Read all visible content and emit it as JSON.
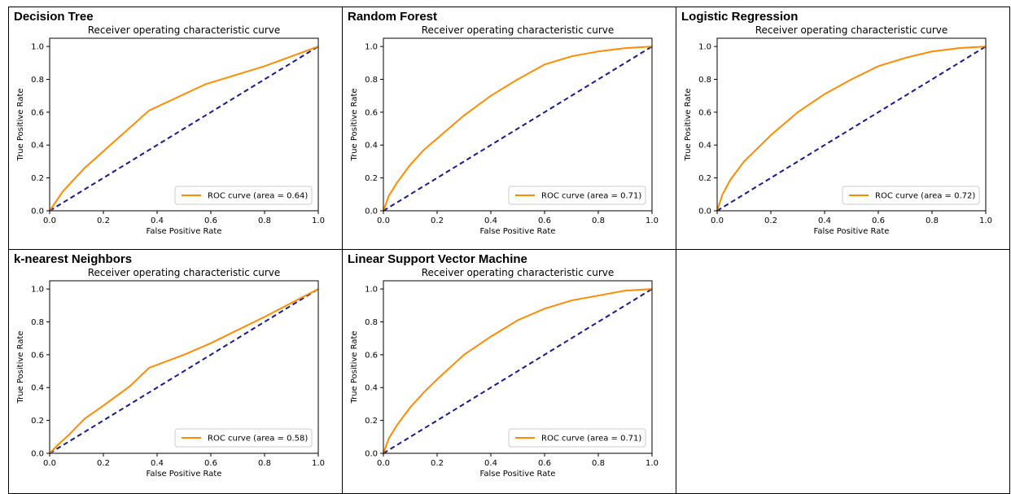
{
  "colors": {
    "roc": "#ff8c00",
    "diagonal": "#1a1a8c",
    "frame": "#000000"
  },
  "chart_data": [
    {
      "type": "line",
      "panel_title": "Decision Tree",
      "title": "Receiver operating characteristic curve",
      "xlabel": "False Positive Rate",
      "ylabel": "True Positive Rate",
      "xlim": [
        0,
        1
      ],
      "ylim": [
        0,
        1.05
      ],
      "xticks": [
        "0.0",
        "0.2",
        "0.4",
        "0.6",
        "0.8",
        "1.0"
      ],
      "yticks": [
        "0.0",
        "0.2",
        "0.4",
        "0.6",
        "0.8",
        "1.0"
      ],
      "legend_position": "lower-right",
      "series": [
        {
          "name": "ROC curve (area = 0.64)",
          "x": [
            0,
            0.05,
            0.13,
            0.37,
            0.58,
            0.8,
            1.0
          ],
          "y": [
            0,
            0.12,
            0.26,
            0.61,
            0.77,
            0.88,
            1.0
          ]
        }
      ],
      "diagonal": {
        "x": [
          0,
          1
        ],
        "y": [
          0,
          1
        ]
      }
    },
    {
      "type": "line",
      "panel_title": "Random Forest",
      "title": "Receiver operating characteristic curve",
      "xlabel": "False Positive Rate",
      "ylabel": "True Positive Rate",
      "xlim": [
        0,
        1
      ],
      "ylim": [
        0,
        1.05
      ],
      "xticks": [
        "0.0",
        "0.2",
        "0.4",
        "0.6",
        "0.8",
        "1.0"
      ],
      "yticks": [
        "0.0",
        "0.2",
        "0.4",
        "0.6",
        "0.8",
        "1.0"
      ],
      "legend_position": "lower-right",
      "series": [
        {
          "name": "ROC curve (area = 0.71)",
          "x": [
            0,
            0.02,
            0.05,
            0.1,
            0.15,
            0.2,
            0.3,
            0.4,
            0.5,
            0.6,
            0.7,
            0.8,
            0.9,
            1.0
          ],
          "y": [
            0,
            0.09,
            0.17,
            0.28,
            0.37,
            0.44,
            0.58,
            0.7,
            0.8,
            0.89,
            0.94,
            0.97,
            0.99,
            1.0
          ]
        }
      ],
      "diagonal": {
        "x": [
          0,
          1
        ],
        "y": [
          0,
          1
        ]
      }
    },
    {
      "type": "line",
      "panel_title": "Logistic Regression",
      "title": "Receiver operating characteristic curve",
      "xlabel": "False Positive Rate",
      "ylabel": "True Positive Rate",
      "xlim": [
        0,
        1
      ],
      "ylim": [
        0,
        1.05
      ],
      "xticks": [
        "0.0",
        "0.2",
        "0.4",
        "0.6",
        "0.8",
        "1.0"
      ],
      "yticks": [
        "0.0",
        "0.2",
        "0.4",
        "0.6",
        "0.8",
        "1.0"
      ],
      "legend_position": "lower-right",
      "series": [
        {
          "name": "ROC curve (area = 0.72)",
          "x": [
            0,
            0.02,
            0.05,
            0.1,
            0.15,
            0.2,
            0.3,
            0.4,
            0.5,
            0.6,
            0.7,
            0.8,
            0.9,
            1.0
          ],
          "y": [
            0,
            0.1,
            0.19,
            0.3,
            0.38,
            0.46,
            0.6,
            0.71,
            0.8,
            0.88,
            0.93,
            0.97,
            0.99,
            1.0
          ]
        }
      ],
      "diagonal": {
        "x": [
          0,
          1
        ],
        "y": [
          0,
          1
        ]
      }
    },
    {
      "type": "line",
      "panel_title": "k-nearest Neighbors",
      "title": "Receiver operating characteristic curve",
      "xlabel": "False Positive Rate",
      "ylabel": "True Positive Rate",
      "xlim": [
        0,
        1
      ],
      "ylim": [
        0,
        1.05
      ],
      "xticks": [
        "0.0",
        "0.2",
        "0.4",
        "0.6",
        "0.8",
        "1.0"
      ],
      "yticks": [
        "0.0",
        "0.2",
        "0.4",
        "0.6",
        "0.8",
        "1.0"
      ],
      "legend_position": "lower-right",
      "series": [
        {
          "name": "ROC curve (area = 0.58)",
          "x": [
            0,
            0.03,
            0.07,
            0.13,
            0.2,
            0.3,
            0.37,
            0.5,
            0.6,
            0.8,
            1.0
          ],
          "y": [
            0,
            0.05,
            0.11,
            0.21,
            0.29,
            0.41,
            0.52,
            0.6,
            0.67,
            0.83,
            1.0
          ]
        }
      ],
      "diagonal": {
        "x": [
          0,
          1
        ],
        "y": [
          0,
          1
        ]
      }
    },
    {
      "type": "line",
      "panel_title": "Linear Support Vector Machine",
      "title": "Receiver operating characteristic curve",
      "xlabel": "False Positive Rate",
      "ylabel": "True Positive Rate",
      "xlim": [
        0,
        1
      ],
      "ylim": [
        0,
        1.05
      ],
      "xticks": [
        "0.0",
        "0.2",
        "0.4",
        "0.6",
        "0.8",
        "1.0"
      ],
      "yticks": [
        "0.0",
        "0.2",
        "0.4",
        "0.6",
        "0.8",
        "1.0"
      ],
      "legend_position": "lower-right",
      "series": [
        {
          "name": "ROC curve (area = 0.71)",
          "x": [
            0,
            0.02,
            0.05,
            0.1,
            0.15,
            0.2,
            0.3,
            0.4,
            0.5,
            0.6,
            0.7,
            0.8,
            0.9,
            1.0
          ],
          "y": [
            0,
            0.09,
            0.17,
            0.28,
            0.37,
            0.45,
            0.6,
            0.71,
            0.81,
            0.88,
            0.93,
            0.96,
            0.99,
            1.0
          ]
        }
      ],
      "diagonal": {
        "x": [
          0,
          1
        ],
        "y": [
          0,
          1
        ]
      }
    }
  ]
}
